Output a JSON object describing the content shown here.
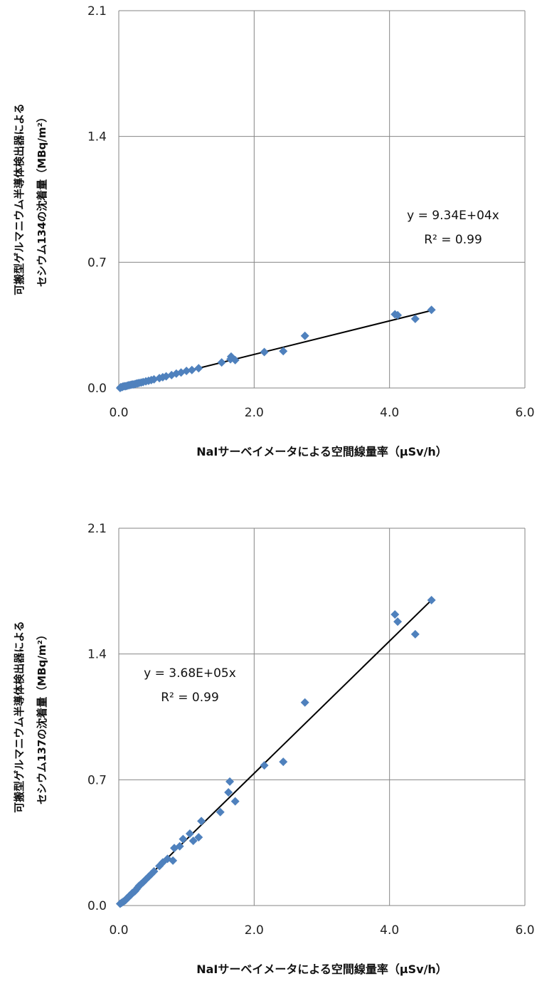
{
  "chart_data": [
    {
      "type": "scatter",
      "title": "",
      "xlabel": "NaIサーベイメータによる空間線量率（μSv/h）",
      "ylabel_lines": [
        "可搬型ゲルマニウム半導体検出器による",
        "セシウム134の沈着量（MBq/m²）"
      ],
      "xlim": [
        0.0,
        6.0
      ],
      "ylim": [
        0.0,
        2.1
      ],
      "xticks": [
        "0.0",
        "2.0",
        "4.0",
        "6.0"
      ],
      "yticks": [
        "0.0",
        "0.7",
        "1.4",
        "2.1"
      ],
      "grid": true,
      "marker_color": "#4F81BD",
      "trendline": {
        "slope": 0.0934,
        "equation": "y = 9.34E+04x",
        "r2_label": "R² = 0.99"
      },
      "points": [
        [
          0.02,
          0.0
        ],
        [
          0.03,
          0.005
        ],
        [
          0.05,
          0.005
        ],
        [
          0.06,
          0.008
        ],
        [
          0.08,
          0.01
        ],
        [
          0.1,
          0.01
        ],
        [
          0.12,
          0.012
        ],
        [
          0.14,
          0.015
        ],
        [
          0.16,
          0.016
        ],
        [
          0.18,
          0.018
        ],
        [
          0.2,
          0.02
        ],
        [
          0.22,
          0.02
        ],
        [
          0.24,
          0.022
        ],
        [
          0.26,
          0.025
        ],
        [
          0.28,
          0.026
        ],
        [
          0.3,
          0.028
        ],
        [
          0.33,
          0.03
        ],
        [
          0.36,
          0.033
        ],
        [
          0.4,
          0.037
        ],
        [
          0.44,
          0.04
        ],
        [
          0.48,
          0.044
        ],
        [
          0.52,
          0.048
        ],
        [
          0.6,
          0.055
        ],
        [
          0.65,
          0.06
        ],
        [
          0.7,
          0.065
        ],
        [
          0.78,
          0.072
        ],
        [
          0.85,
          0.08
        ],
        [
          0.92,
          0.086
        ],
        [
          1.0,
          0.095
        ],
        [
          1.08,
          0.1
        ],
        [
          1.18,
          0.11
        ],
        [
          1.52,
          0.142
        ],
        [
          1.65,
          0.16
        ],
        [
          1.66,
          0.175
        ],
        [
          1.72,
          0.155
        ],
        [
          2.15,
          0.2
        ],
        [
          2.43,
          0.205
        ],
        [
          2.75,
          0.29
        ],
        [
          4.08,
          0.41
        ],
        [
          4.12,
          0.405
        ],
        [
          4.38,
          0.385
        ],
        [
          4.62,
          0.435
        ]
      ]
    },
    {
      "type": "scatter",
      "title": "",
      "xlabel": "NaIサーベイメータによる空間線量率（μSv/h）",
      "ylabel_lines": [
        "可搬型ゲルマニウム半導体検出器による",
        "セシウム137の沈着量（MBq/m²）"
      ],
      "xlim": [
        0.0,
        6.0
      ],
      "ylim": [
        0.0,
        2.1
      ],
      "xticks": [
        "0.0",
        "2.0",
        "4.0",
        "6.0"
      ],
      "yticks": [
        "0.0",
        "0.7",
        "1.4",
        "2.1"
      ],
      "grid": true,
      "marker_color": "#4F81BD",
      "trendline": {
        "slope": 0.368,
        "equation": "y = 3.68E+05x",
        "r2_label": "R² = 0.99"
      },
      "points": [
        [
          0.02,
          0.01
        ],
        [
          0.04,
          0.015
        ],
        [
          0.06,
          0.02
        ],
        [
          0.08,
          0.025
        ],
        [
          0.1,
          0.03
        ],
        [
          0.12,
          0.04
        ],
        [
          0.14,
          0.045
        ],
        [
          0.16,
          0.055
        ],
        [
          0.18,
          0.06
        ],
        [
          0.2,
          0.07
        ],
        [
          0.22,
          0.075
        ],
        [
          0.24,
          0.08
        ],
        [
          0.26,
          0.09
        ],
        [
          0.28,
          0.1
        ],
        [
          0.3,
          0.11
        ],
        [
          0.33,
          0.12
        ],
        [
          0.36,
          0.13
        ],
        [
          0.4,
          0.145
        ],
        [
          0.44,
          0.16
        ],
        [
          0.48,
          0.175
        ],
        [
          0.52,
          0.19
        ],
        [
          0.6,
          0.22
        ],
        [
          0.65,
          0.24
        ],
        [
          0.72,
          0.26
        ],
        [
          0.8,
          0.25
        ],
        [
          0.82,
          0.32
        ],
        [
          0.9,
          0.33
        ],
        [
          0.95,
          0.37
        ],
        [
          1.05,
          0.4
        ],
        [
          1.1,
          0.36
        ],
        [
          1.18,
          0.38
        ],
        [
          1.22,
          0.47
        ],
        [
          1.5,
          0.52
        ],
        [
          1.62,
          0.63
        ],
        [
          1.64,
          0.69
        ],
        [
          1.72,
          0.58
        ],
        [
          2.15,
          0.78
        ],
        [
          2.43,
          0.8
        ],
        [
          2.75,
          1.13
        ],
        [
          4.08,
          1.62
        ],
        [
          4.12,
          1.58
        ],
        [
          4.38,
          1.51
        ],
        [
          4.62,
          1.7
        ]
      ]
    }
  ]
}
